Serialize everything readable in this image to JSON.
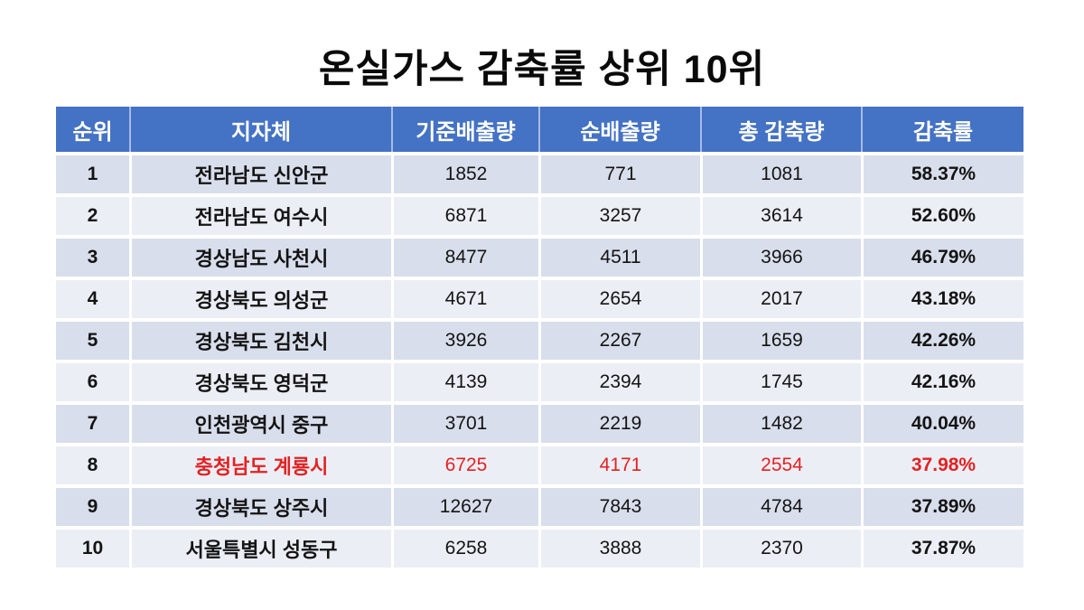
{
  "title": "온실가스 감축률 상위 10위",
  "table": {
    "headers": [
      "순위",
      "지자체",
      "기준배출량",
      "순배출량",
      "총 감축량",
      "감축률"
    ],
    "rows": [
      {
        "rank": "1",
        "name": "전라남도 신안군",
        "base": "1852",
        "net": "771",
        "total": "1081",
        "rate": "58.37%",
        "highlight": false
      },
      {
        "rank": "2",
        "name": "전라남도 여수시",
        "base": "6871",
        "net": "3257",
        "total": "3614",
        "rate": "52.60%",
        "highlight": false
      },
      {
        "rank": "3",
        "name": "경상남도 사천시",
        "base": "8477",
        "net": "4511",
        "total": "3966",
        "rate": "46.79%",
        "highlight": false
      },
      {
        "rank": "4",
        "name": "경상북도 의성군",
        "base": "4671",
        "net": "2654",
        "total": "2017",
        "rate": "43.18%",
        "highlight": false
      },
      {
        "rank": "5",
        "name": "경상북도 김천시",
        "base": "3926",
        "net": "2267",
        "total": "1659",
        "rate": "42.26%",
        "highlight": false
      },
      {
        "rank": "6",
        "name": "경상북도 영덕군",
        "base": "4139",
        "net": "2394",
        "total": "1745",
        "rate": "42.16%",
        "highlight": false
      },
      {
        "rank": "7",
        "name": "인천광역시 중구",
        "base": "3701",
        "net": "2219",
        "total": "1482",
        "rate": "40.04%",
        "highlight": false
      },
      {
        "rank": "8",
        "name": "충청남도 계룡시",
        "base": "6725",
        "net": "4171",
        "total": "2554",
        "rate": "37.98%",
        "highlight": true
      },
      {
        "rank": "9",
        "name": "경상북도 상주시",
        "base": "12627",
        "net": "7843",
        "total": "4784",
        "rate": "37.89%",
        "highlight": false
      },
      {
        "rank": "10",
        "name": "서울특별시 성동구",
        "base": "6258",
        "net": "3888",
        "total": "2370",
        "rate": "37.87%",
        "highlight": false
      }
    ]
  },
  "colors": {
    "header_bg": "#4472C4",
    "header_text": "#FFFFFF",
    "row_band_dark": "#D9DEEC",
    "row_band_light": "#ECEEF6",
    "highlight_text": "#E32222",
    "body_text": "#141414"
  },
  "chart_data": {
    "type": "table",
    "title": "온실가스 감축률 상위 10위",
    "columns": [
      "순위",
      "지자체",
      "기준배출량",
      "순배출량",
      "총 감축량",
      "감축률"
    ],
    "rows": [
      [
        1,
        "전라남도 신안군",
        1852,
        771,
        1081,
        "58.37%"
      ],
      [
        2,
        "전라남도 여수시",
        6871,
        3257,
        3614,
        "52.60%"
      ],
      [
        3,
        "경상남도 사천시",
        8477,
        4511,
        3966,
        "46.79%"
      ],
      [
        4,
        "경상북도 의성군",
        4671,
        2654,
        2017,
        "43.18%"
      ],
      [
        5,
        "경상북도 김천시",
        3926,
        2267,
        1659,
        "42.26%"
      ],
      [
        6,
        "경상북도 영덕군",
        4139,
        2394,
        1745,
        "42.16%"
      ],
      [
        7,
        "인천광역시 중구",
        3701,
        2219,
        1482,
        "40.04%"
      ],
      [
        8,
        "충청남도 계룡시",
        6725,
        4171,
        2554,
        "37.98%"
      ],
      [
        9,
        "경상북도 상주시",
        12627,
        7843,
        4784,
        "37.89%"
      ],
      [
        10,
        "서울특별시 성동구",
        6258,
        3888,
        2370,
        "37.87%"
      ]
    ],
    "notes": "Row 8 (충청남도 계룡시) rendered in red highlight; header row blue #4472C4; banded row backgrounds."
  }
}
